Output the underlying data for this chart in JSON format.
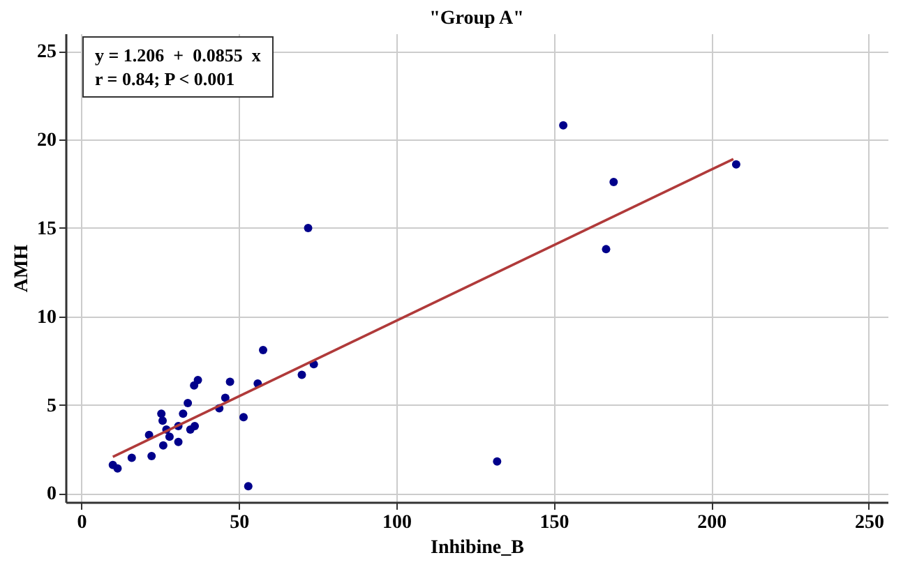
{
  "chart_data": {
    "type": "scatter",
    "title": "\"Group A\"",
    "xlabel": "Inhibine_B",
    "ylabel": "AMH",
    "annotations": [
      "y = 1.206  +  0.0855  x",
      "r = 0.84; P < 0.001"
    ],
    "series": [
      {
        "color": "#00008b",
        "marker": "circle",
        "x": [
          10,
          11.5,
          16,
          21.5,
          22.3,
          25.4,
          25.8,
          26,
          27,
          28,
          30.8,
          30.8,
          32.3,
          33.8,
          34.6,
          36,
          35.8,
          37,
          43.8,
          45.7,
          47.2,
          51.5,
          53,
          56,
          57.7,
          70,
          72,
          73.8,
          132,
          153,
          166.6,
          169,
          207.9
        ],
        "values": [
          1.6,
          1.4,
          2.0,
          3.3,
          2.1,
          4.5,
          4.1,
          2.7,
          3.6,
          3.2,
          2.9,
          3.8,
          4.5,
          5.1,
          3.6,
          3.8,
          6.1,
          6.4,
          4.8,
          5.4,
          6.3,
          4.3,
          0.4,
          6.2,
          8.1,
          6.7,
          15,
          7.3,
          1.8,
          20.8,
          13.8,
          17.6,
          18.6
        ]
      },
      {
        "type": "line",
        "color": "#b03a3a",
        "marker": "none",
        "line_style": "solid",
        "x": [
          10,
          207
        ],
        "values": [
          2.06,
          18.9
        ]
      }
    ],
    "xlim": [
      -5,
      256
    ],
    "xticks": [
      0,
      50,
      100,
      150,
      200,
      250
    ],
    "ylim": [
      -0.5,
      26
    ],
    "yticks": [
      0,
      5,
      10,
      15,
      20,
      25
    ],
    "grid": true
  }
}
